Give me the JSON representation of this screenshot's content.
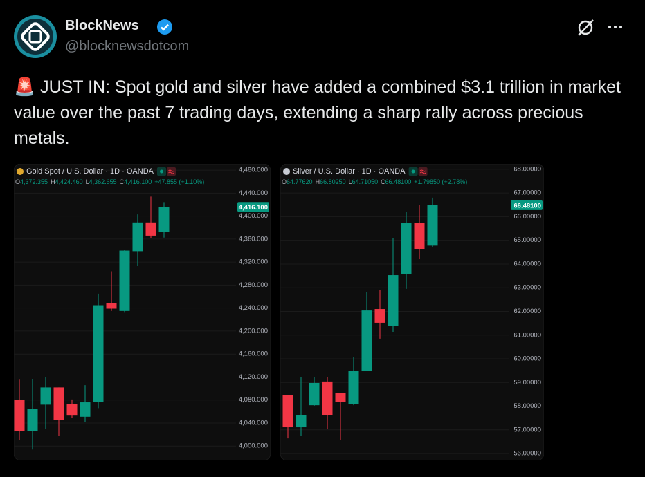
{
  "tweet": {
    "author": {
      "name": "BlockNews",
      "handle": "@blocknewsdotcom"
    },
    "text": "🚨 JUST IN: Spot gold and silver have added a combined $3.1 trillion in market value over the past 7 trading days, extending a sharp rally across precious metals."
  },
  "chart_data": [
    {
      "type": "candlestick",
      "title": "Gold Spot / U.S. Dollar · 1D · OANDA",
      "icon_color": "#e0a82e",
      "ohlc_legend": [
        {
          "key": "O",
          "value": "4,372.355"
        },
        {
          "key": "H",
          "value": "4,424.460"
        },
        {
          "key": "L",
          "value": "4,362.655"
        },
        {
          "key": "C",
          "value": "4,416.100"
        }
      ],
      "change": "+47.855 (+1.10%)",
      "last_label": "4,416.100",
      "open": [
        4080.6,
        4026,
        4072,
        4102,
        4073,
        4051,
        4077,
        4249,
        4235,
        4339,
        4389,
        4372.355
      ],
      "high": [
        4116.7,
        4117,
        4120,
        4102,
        4081,
        4106,
        4265,
        4304,
        4341,
        4403,
        4434,
        4424.46
      ],
      "low": [
        4010.8,
        3994,
        4030,
        4018,
        4049,
        4042,
        4066,
        4235,
        4232,
        4313,
        4362,
        4362.655
      ],
      "close": [
        4026.5,
        4064,
        4102,
        4045,
        4053,
        4076,
        4245,
        4239,
        4340,
        4389,
        4366,
        4416.1
      ],
      "up_color": "#089981",
      "down_color": "#f23645",
      "ylim": [
        3975,
        4491
      ],
      "yticks": [
        {
          "value": 4000,
          "label": "4,000.000"
        },
        {
          "value": 4040,
          "label": "4,040.000"
        },
        {
          "value": 4080,
          "label": "4,080.000"
        },
        {
          "value": 4120,
          "label": "4,120.000"
        },
        {
          "value": 4160,
          "label": "4,160.000"
        },
        {
          "value": 4200,
          "label": "4,200.000"
        },
        {
          "value": 4240,
          "label": "4,240.000"
        },
        {
          "value": 4280,
          "label": "4,280.000"
        },
        {
          "value": 4320,
          "label": "4,320.000"
        },
        {
          "value": 4360,
          "label": "4,360.000"
        },
        {
          "value": 4400,
          "label": "4,400.000"
        },
        {
          "value": 4440,
          "label": "4,440.000"
        },
        {
          "value": 4480,
          "label": "4,480.000"
        }
      ],
      "grid": true
    },
    {
      "type": "candlestick",
      "title": "Silver / U.S. Dollar · 1D · OANDA",
      "icon_color": "#c8ccd4",
      "ohlc_legend": [
        {
          "key": "O",
          "value": "64.77620"
        },
        {
          "key": "H",
          "value": "66.80250"
        },
        {
          "key": "L",
          "value": "64.71050"
        },
        {
          "key": "C",
          "value": "66.48100"
        }
      ],
      "change": "+1.79850 (+2.78%)",
      "last_label": "66.48100",
      "open": [
        58.48,
        57.11,
        58.04,
        59.04,
        58.57,
        58.1,
        59.5,
        62.1,
        61.4,
        63.59,
        65.72,
        64.7762
      ],
      "high": [
        58.48,
        59.24,
        59.24,
        59.24,
        58.57,
        60.06,
        62.8,
        62.89,
        65.08,
        66.19,
        66.48,
        66.8025
      ],
      "low": [
        56.64,
        56.76,
        57.99,
        57.05,
        56.58,
        58.04,
        59.5,
        60.85,
        61.14,
        62.95,
        64.23,
        64.7105
      ],
      "close": [
        57.11,
        57.61,
        58.98,
        57.61,
        58.19,
        59.5,
        62.04,
        61.52,
        63.53,
        65.72,
        64.64,
        66.481
      ],
      "up_color": "#089981",
      "down_color": "#f23645",
      "ylim": [
        55.71,
        68.23
      ],
      "yticks": [
        {
          "value": 56,
          "label": "56.00000"
        },
        {
          "value": 57,
          "label": "57.00000"
        },
        {
          "value": 58,
          "label": "58.00000"
        },
        {
          "value": 59,
          "label": "59.00000"
        },
        {
          "value": 60,
          "label": "60.00000"
        },
        {
          "value": 61,
          "label": "61.00000"
        },
        {
          "value": 62,
          "label": "62.00000"
        },
        {
          "value": 63,
          "label": "63.00000"
        },
        {
          "value": 64,
          "label": "64.00000"
        },
        {
          "value": 65,
          "label": "65.00000"
        },
        {
          "value": 66,
          "label": "66.00000"
        },
        {
          "value": 67,
          "label": "67.00000"
        },
        {
          "value": 68,
          "label": "68.00000"
        }
      ],
      "grid": true
    }
  ]
}
